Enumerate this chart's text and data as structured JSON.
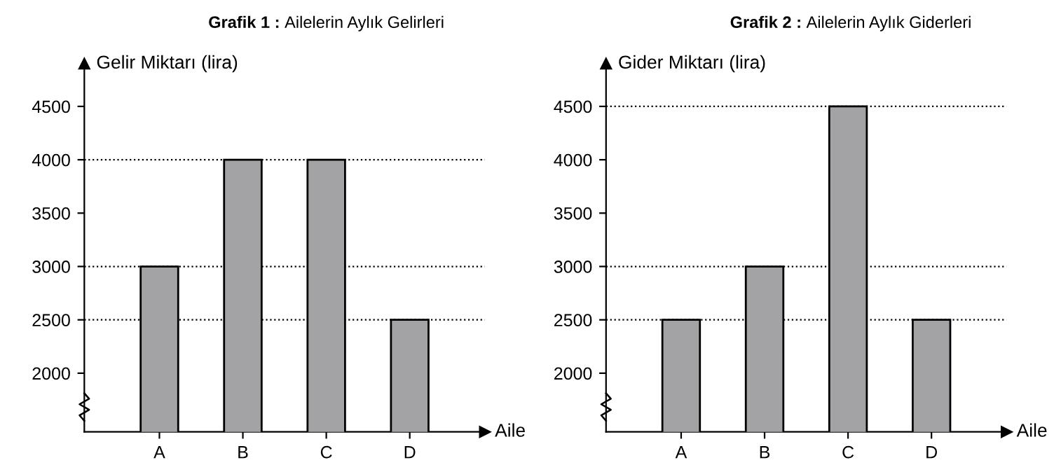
{
  "chart_data": [
    {
      "type": "bar",
      "title": "Grafik 1 : Ailelerin Aylık Gelirleri",
      "ylabel": "Gelir Miktarı (lira)",
      "xlabel": "Aile",
      "categories": [
        "A",
        "B",
        "C",
        "D"
      ],
      "values": [
        3000,
        4000,
        4000,
        2500
      ],
      "color": "#a3a3a6",
      "ylim": [
        1450,
        4900
      ],
      "yticks": [
        2000,
        2500,
        3000,
        3500,
        4000,
        4500
      ],
      "grid": false,
      "ref_lines": [
        {
          "axis": "y",
          "value": 3000,
          "line_style": "dotted",
          "color": "#000000"
        },
        {
          "axis": "y",
          "value": 4000,
          "line_style": "dotted",
          "color": "#000000"
        },
        {
          "axis": "y",
          "value": 2500,
          "line_style": "dotted",
          "color": "#000000"
        }
      ]
    },
    {
      "type": "bar",
      "title": "Grafik 2 : Ailelerin Aylık Giderleri",
      "ylabel": "Gider Miktarı (lira)",
      "xlabel": "Aile",
      "categories": [
        "A",
        "B",
        "C",
        "D"
      ],
      "values": [
        2500,
        3000,
        4500,
        2500
      ],
      "color": "#a3a3a6",
      "ylim": [
        1450,
        4900
      ],
      "yticks": [
        2000,
        2500,
        3000,
        3500,
        4000,
        4500
      ],
      "grid": false,
      "ref_lines": [
        {
          "axis": "y",
          "value": 4500,
          "line_style": "dotted",
          "color": "#000000"
        },
        {
          "axis": "y",
          "value": 3000,
          "line_style": "dotted",
          "color": "#000000"
        },
        {
          "axis": "y",
          "value": 2500,
          "line_style": "dotted",
          "color": "#000000"
        }
      ]
    }
  ]
}
